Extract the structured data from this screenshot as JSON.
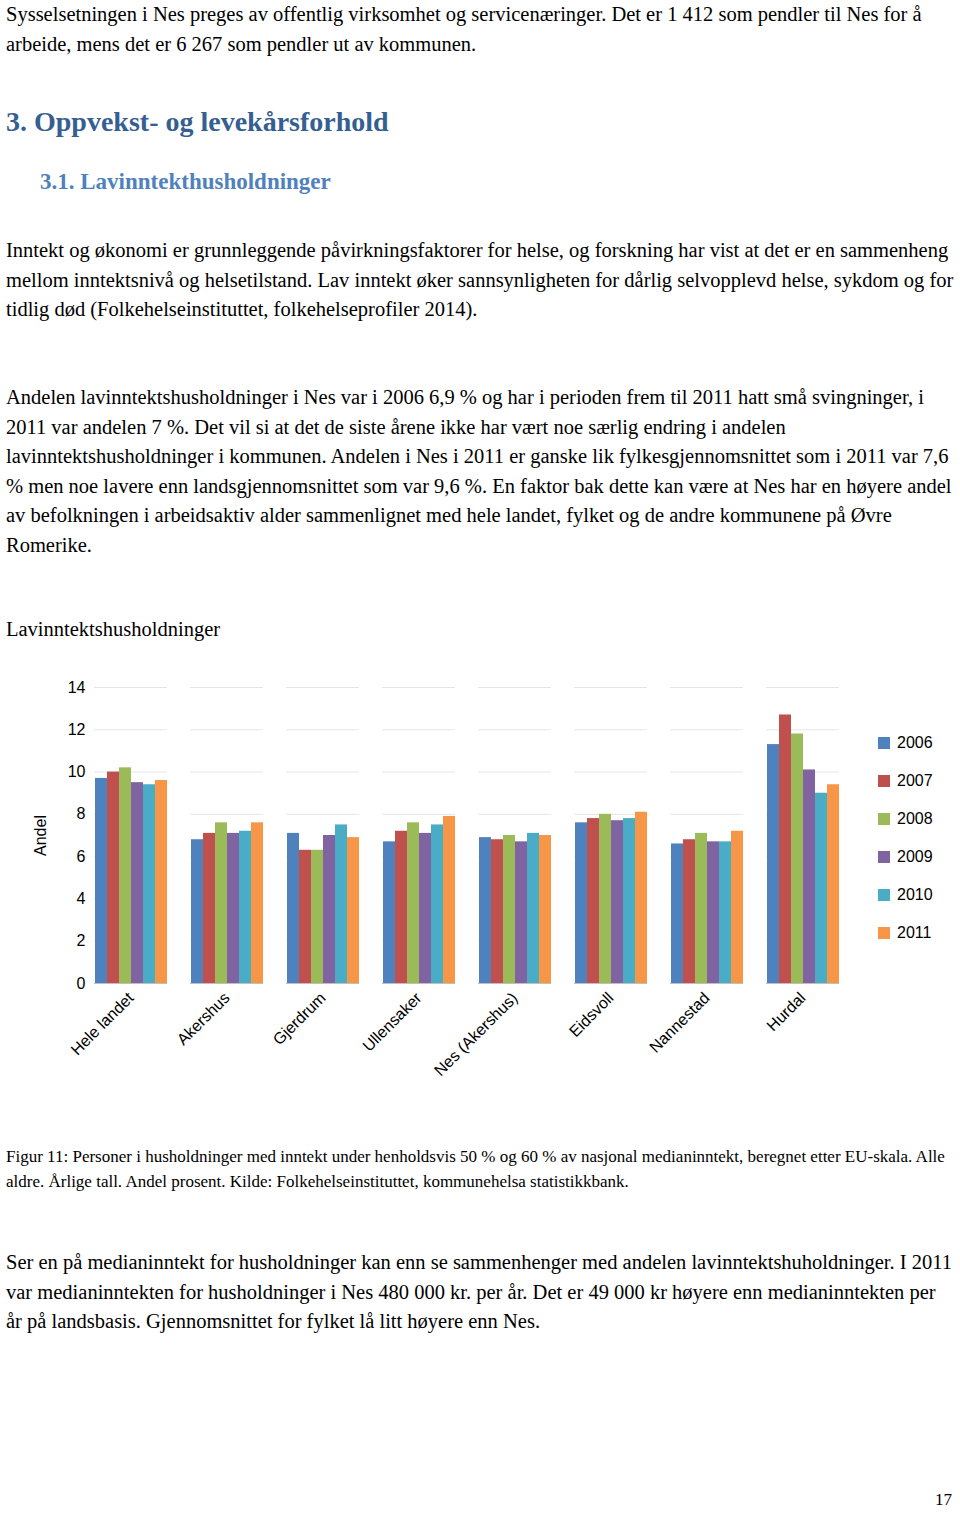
{
  "page": {
    "intro": "Sysselsetningen i Nes preges av offentlig virksomhet og servicenæringer. Det er 1 412 som pendler til Nes for å arbeide, mens det er 6 267 som pendler ut av kommunen.",
    "heading": "3. Oppvekst- og levekårsforhold",
    "subheading": "3.1. Lavinntekthusholdninger",
    "paragraphs": [
      "Inntekt og økonomi er grunnleggende påvirkningsfaktorer for helse, og forskning har vist at det er en sammenheng mellom inntektsnivå og helsetilstand. Lav inntekt øker sannsynligheten for dårlig selvopplevd helse, sykdom og for tidlig død (Folkehelseinstituttet, folkehelseprofiler 2014).",
      "Andelen lavinntektshusholdninger i Nes var i 2006 6,9 % og har i perioden frem til 2011 hatt små svingninger, i 2011 var andelen 7 %. Det vil si at det de siste årene ikke har vært noe særlig endring i andelen lavinntektshusholdninger i kommunen. Andelen i Nes i 2011 er ganske lik fylkesgjennomsnittet som i 2011 var 7,6 % men noe lavere enn landsgjennomsnittet som var 9,6 %. En faktor bak dette kan være at Nes har en høyere andel av befolkningen i arbeidsaktiv alder sammenlignet med hele landet, fylket og de andre kommunene på Øvre Romerike."
    ],
    "caption": "Figur 11: Personer i husholdninger med inntekt under henholdsvis 50 % og 60 % av nasjonal medianinntekt, beregnet etter EU-skala. Alle aldre. Årlige tall. Andel prosent. Kilde: Folkehelseinstituttet, kommunehelsa statistikkbank.",
    "closing": "Ser en på medianinntekt for husholdninger kan enn se sammenhenger med andelen lavinntektshuholdninger. I 2011 var medianinntekten for husholdninger i Nes 480 000 kr. per år. Det er 49 000 kr høyere enn medianinntekten per år på landsbasis. Gjennomsnittet for fylket lå litt høyere enn Nes.",
    "page_number": "17"
  },
  "chart_data": {
    "type": "bar",
    "title": "Lavinntektshusholdninger",
    "y_label": "Andel",
    "categories": [
      "Hele landet",
      "Akershus",
      "Gjerdrum",
      "Ullensaker",
      "Nes (Akershus)",
      "Eidsvoll",
      "Nannestad",
      "Hurdal"
    ],
    "series": [
      {
        "name": "2006",
        "color": "#4F81BD",
        "values": [
          9.7,
          6.8,
          7.1,
          6.7,
          6.9,
          7.6,
          6.6,
          11.3
        ]
      },
      {
        "name": "2007",
        "color": "#C0504D",
        "values": [
          10.0,
          7.1,
          6.3,
          7.2,
          6.8,
          7.8,
          6.8,
          12.7
        ]
      },
      {
        "name": "2008",
        "color": "#9BBB59",
        "values": [
          10.2,
          7.6,
          6.3,
          7.6,
          7.0,
          8.0,
          7.1,
          11.8
        ]
      },
      {
        "name": "2009",
        "color": "#8064A2",
        "values": [
          9.5,
          7.1,
          7.0,
          7.1,
          6.7,
          7.7,
          6.7,
          10.1
        ]
      },
      {
        "name": "2010",
        "color": "#4BACC6",
        "values": [
          9.4,
          7.2,
          7.5,
          7.5,
          7.1,
          7.8,
          6.7,
          9.0
        ]
      },
      {
        "name": "2011",
        "color": "#F79646",
        "values": [
          9.6,
          7.6,
          6.9,
          7.9,
          7.0,
          8.1,
          7.2,
          9.4
        ]
      }
    ],
    "ylim": [
      0,
      14
    ],
    "yticks": [
      0,
      2,
      4,
      6,
      8,
      10,
      12,
      14
    ],
    "grid": true,
    "legend": "right"
  }
}
